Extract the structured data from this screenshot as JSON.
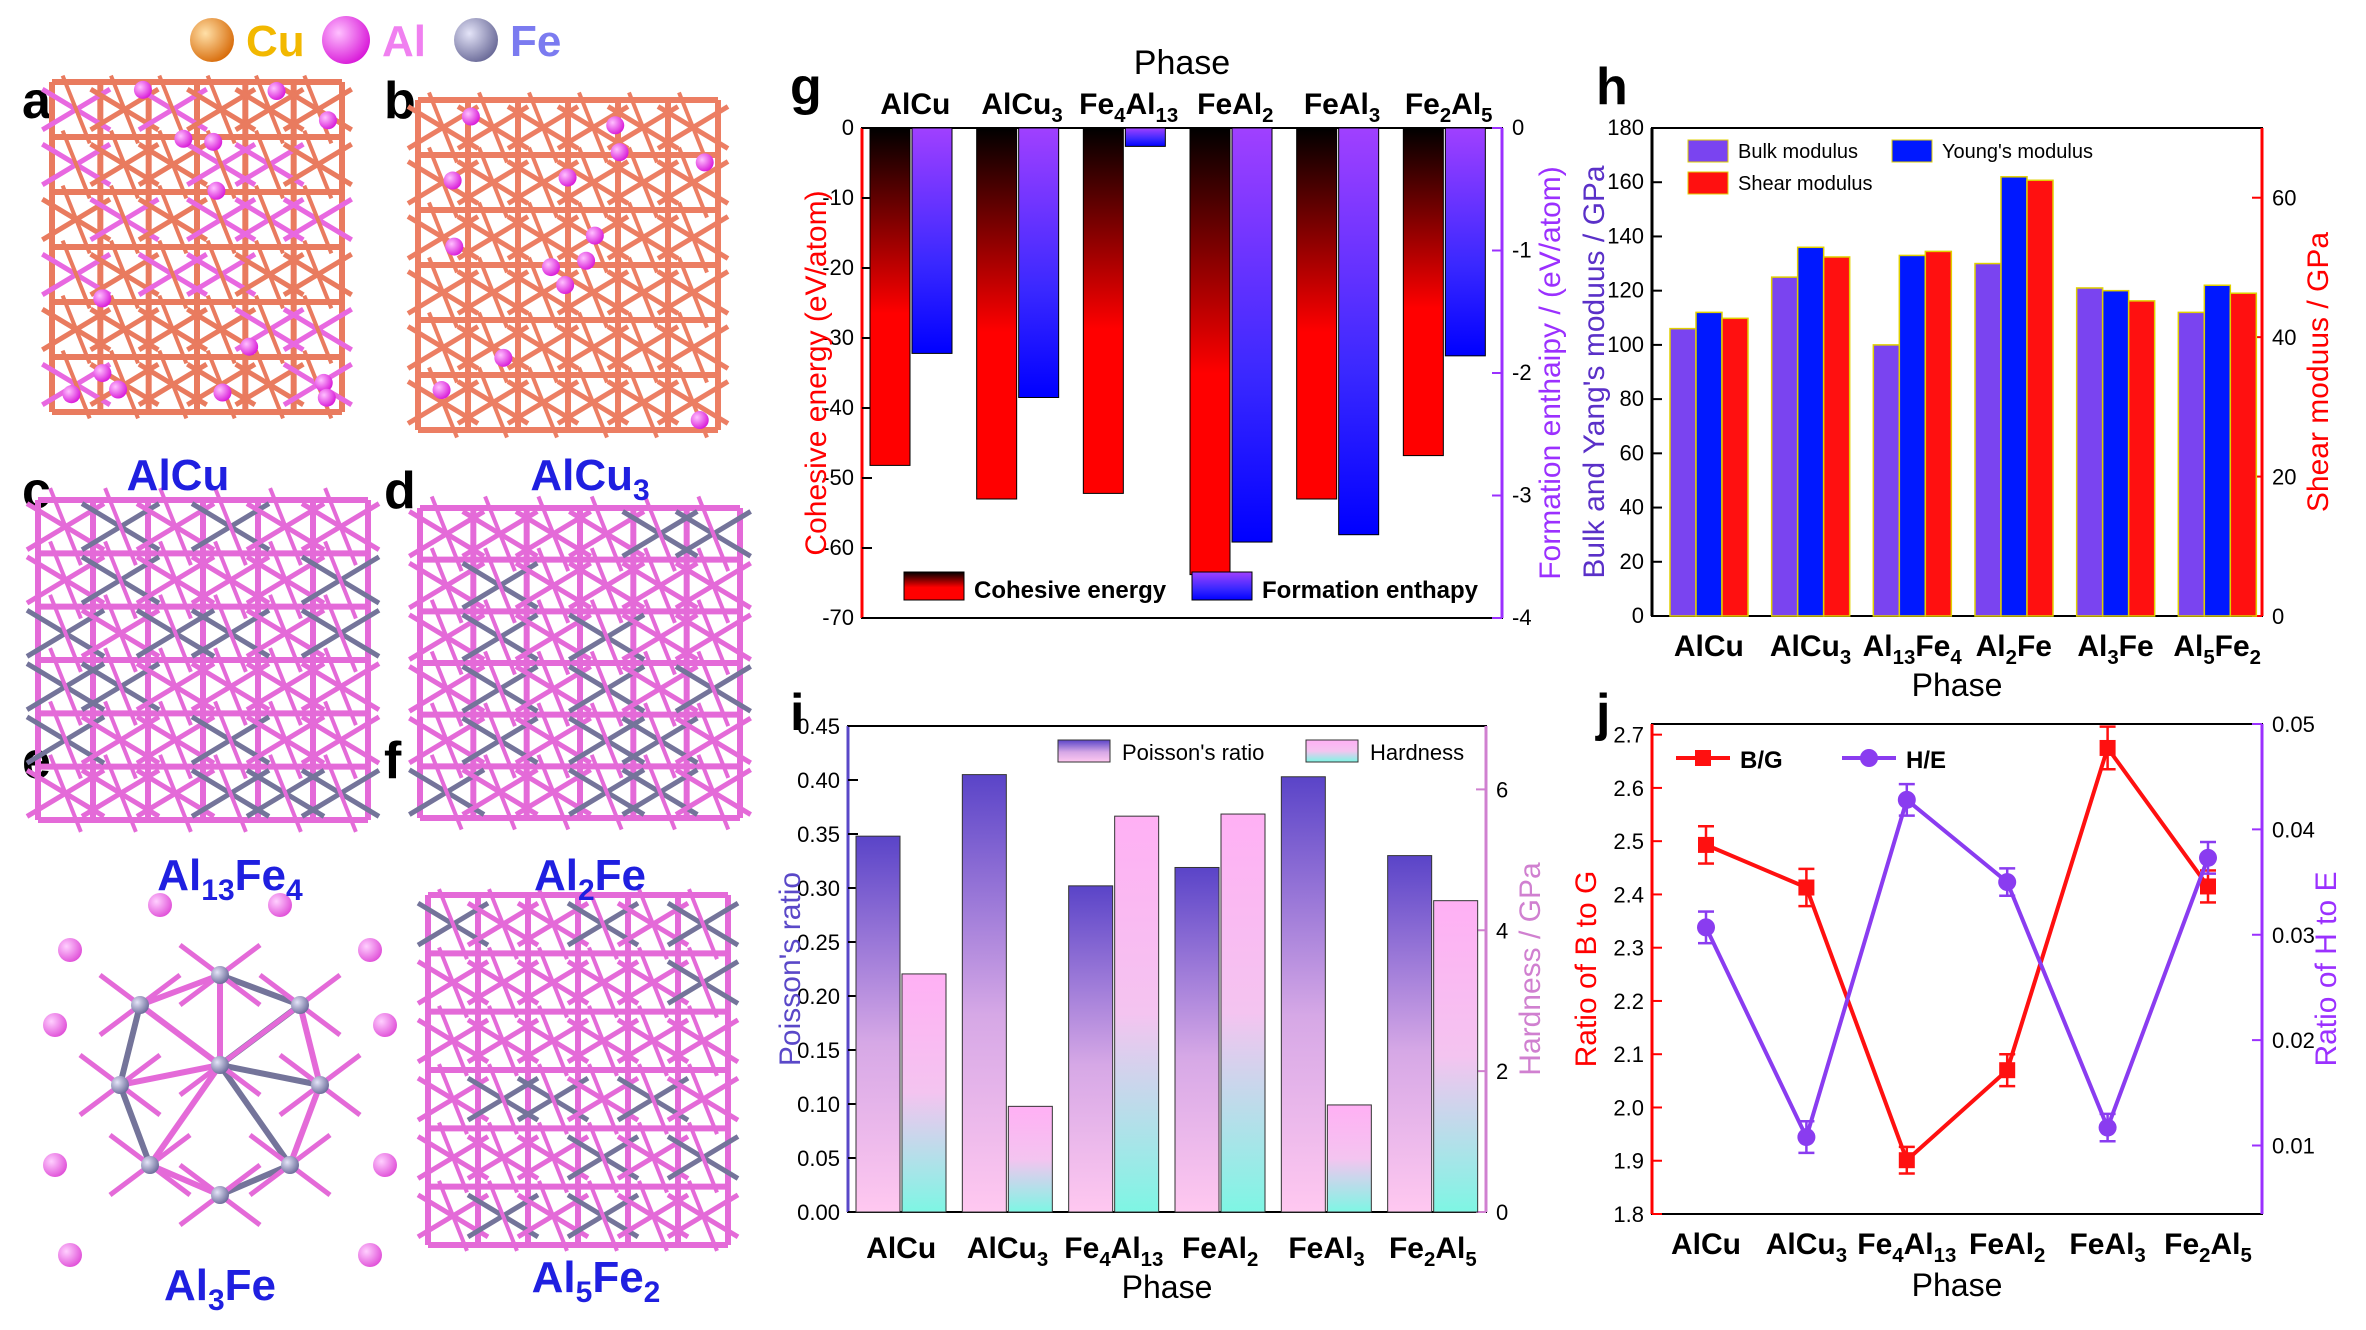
{
  "legend_atoms": [
    {
      "label": "Cu",
      "color": "#f0880f",
      "text_color": "#f2b800"
    },
    {
      "label": "Al",
      "color": "#f040f0",
      "text_color": "#f080f0"
    },
    {
      "label": "Fe",
      "color": "#8c8cb4",
      "text_color": "#7b7bf0"
    }
  ],
  "structures": [
    {
      "panel": "a",
      "label": "AlCu",
      "base": "AlCu",
      "sub": ""
    },
    {
      "panel": "b",
      "label": "AlCu3",
      "base": "AlCu",
      "sub": "3"
    },
    {
      "panel": "c",
      "label": "Al13Fe4",
      "base": "Al",
      "sub": "13",
      "base2": "Fe",
      "sub2": "4"
    },
    {
      "panel": "d",
      "label": "Al2Fe",
      "base": "Al",
      "sub": "2",
      "base2": "Fe",
      "sub2": ""
    },
    {
      "panel": "e",
      "label": "Al3Fe",
      "base": "Al",
      "sub": "3",
      "base2": "Fe",
      "sub2": ""
    },
    {
      "panel": "f",
      "label": "Al5Fe2",
      "base": "Al",
      "sub": "5",
      "base2": "Fe",
      "sub2": "2"
    }
  ],
  "chart_data": [
    {
      "panel": "g",
      "type": "bar",
      "title": "Phase",
      "categories": [
        "AlCu",
        "AlCu3",
        "Fe4Al13",
        "FeAl2",
        "FeAl3",
        "Fe2Al5"
      ],
      "ylabel": "Cohesive energy (eV/atom)",
      "y2label": "Formation enthaipy / (eV/atom)",
      "ylim": [
        -70,
        0
      ],
      "y2lim": [
        -4,
        0
      ],
      "yticks": [
        0,
        -10,
        -20,
        -30,
        -40,
        -50,
        -60,
        -70
      ],
      "y2ticks": [
        0,
        -1,
        -2,
        -3,
        -4
      ],
      "series": [
        {
          "name": "Cohesive energy",
          "axis": "left",
          "values": [
            -48.2,
            -53.0,
            -52.2,
            -63.8,
            -53.0,
            -46.8
          ]
        },
        {
          "name": "Formation enthapy",
          "axis": "right",
          "values": [
            -1.84,
            -2.2,
            -0.15,
            -3.38,
            -3.32,
            -1.86
          ]
        }
      ]
    },
    {
      "panel": "h",
      "type": "bar",
      "categories": [
        "AlCu",
        "AlCu3",
        "Al13Fe4",
        "Al2Fe",
        "Al3Fe",
        "Al5Fe2"
      ],
      "xlabel": "Phase",
      "ylabel": "Bulk and Yang's moduus / GPa",
      "y2label": "Shear moduus / GPa",
      "ylim": [
        0,
        180
      ],
      "y2lim": [
        0,
        70
      ],
      "yticks": [
        0,
        20,
        40,
        60,
        80,
        100,
        120,
        140,
        160,
        180
      ],
      "y2ticks": [
        0,
        20,
        40,
        60
      ],
      "series": [
        {
          "name": "Bulk modulus",
          "axis": "left",
          "values": [
            106,
            125,
            100,
            130,
            121,
            112
          ]
        },
        {
          "name": "Young's modulus",
          "axis": "left",
          "values": [
            112,
            136,
            133,
            162,
            120,
            122
          ]
        },
        {
          "name": "Shear modulus",
          "axis": "right",
          "values": [
            42.7,
            51.5,
            52.3,
            62.5,
            45.2,
            46.3
          ]
        }
      ]
    },
    {
      "panel": "i",
      "type": "bar",
      "categories": [
        "AlCu",
        "AlCu3",
        "Fe4Al13",
        "FeAl2",
        "FeAl3",
        "Fe2Al5"
      ],
      "xlabel": "Phase",
      "ylabel": "Poisson's ratio",
      "y2label": "Hardness / GPa",
      "ylim": [
        0,
        0.45
      ],
      "y2lim": [
        0,
        6.9
      ],
      "yticks": [
        0.0,
        0.05,
        0.1,
        0.15,
        0.2,
        0.25,
        0.3,
        0.35,
        0.4,
        0.45
      ],
      "yticklabels": [
        "0.00",
        "0.05",
        "0.10",
        "0.15",
        "0.20",
        "0.25",
        "0.30",
        "0.35",
        "0.40",
        "0.45"
      ],
      "y2ticks": [
        0,
        2,
        4,
        6
      ],
      "series": [
        {
          "name": "Poisson's ratio",
          "axis": "left",
          "values": [
            0.348,
            0.405,
            0.302,
            0.319,
            0.403,
            0.33
          ]
        },
        {
          "name": "Hardness",
          "axis": "right",
          "values": [
            3.38,
            1.5,
            5.62,
            5.65,
            1.52,
            4.42
          ]
        }
      ]
    },
    {
      "panel": "j",
      "type": "line",
      "categories": [
        "AlCu",
        "AlCu3",
        "Fe4Al13",
        "FeAl2",
        "FeAl3",
        "Fe2Al5"
      ],
      "xlabel": "Phase",
      "ylabel": "Ratio of B to G",
      "y2label": "Ratio of H to E",
      "ylim": [
        1.8,
        2.72
      ],
      "y2lim": [
        0.0035,
        0.05
      ],
      "yticks": [
        1.8,
        1.9,
        2.0,
        2.1,
        2.2,
        2.3,
        2.4,
        2.5,
        2.6,
        2.7
      ],
      "yticklabels": [
        "1.8",
        "1.9",
        "2.0",
        "2.1",
        "2.2",
        "2.3",
        "2.4",
        "2.5",
        "2.6",
        "2.7"
      ],
      "y2ticks": [
        0.01,
        0.02,
        0.03,
        0.04,
        0.05
      ],
      "y2ticklabels": [
        "0.01",
        "0.02",
        "0.03",
        "0.04",
        "0.05"
      ],
      "series": [
        {
          "name": "B/G",
          "axis": "left",
          "values": [
            2.493,
            2.413,
            1.901,
            2.07,
            2.675,
            2.415
          ],
          "errors": [
            0.035,
            0.035,
            0.025,
            0.03,
            0.04,
            0.03
          ]
        },
        {
          "name": "H/E",
          "axis": "right",
          "values": [
            0.0307,
            0.0108,
            0.0428,
            0.035,
            0.0117,
            0.0373
          ],
          "errors": [
            0.0015,
            0.0015,
            0.0015,
            0.0013,
            0.0013,
            0.0015
          ]
        }
      ]
    }
  ]
}
